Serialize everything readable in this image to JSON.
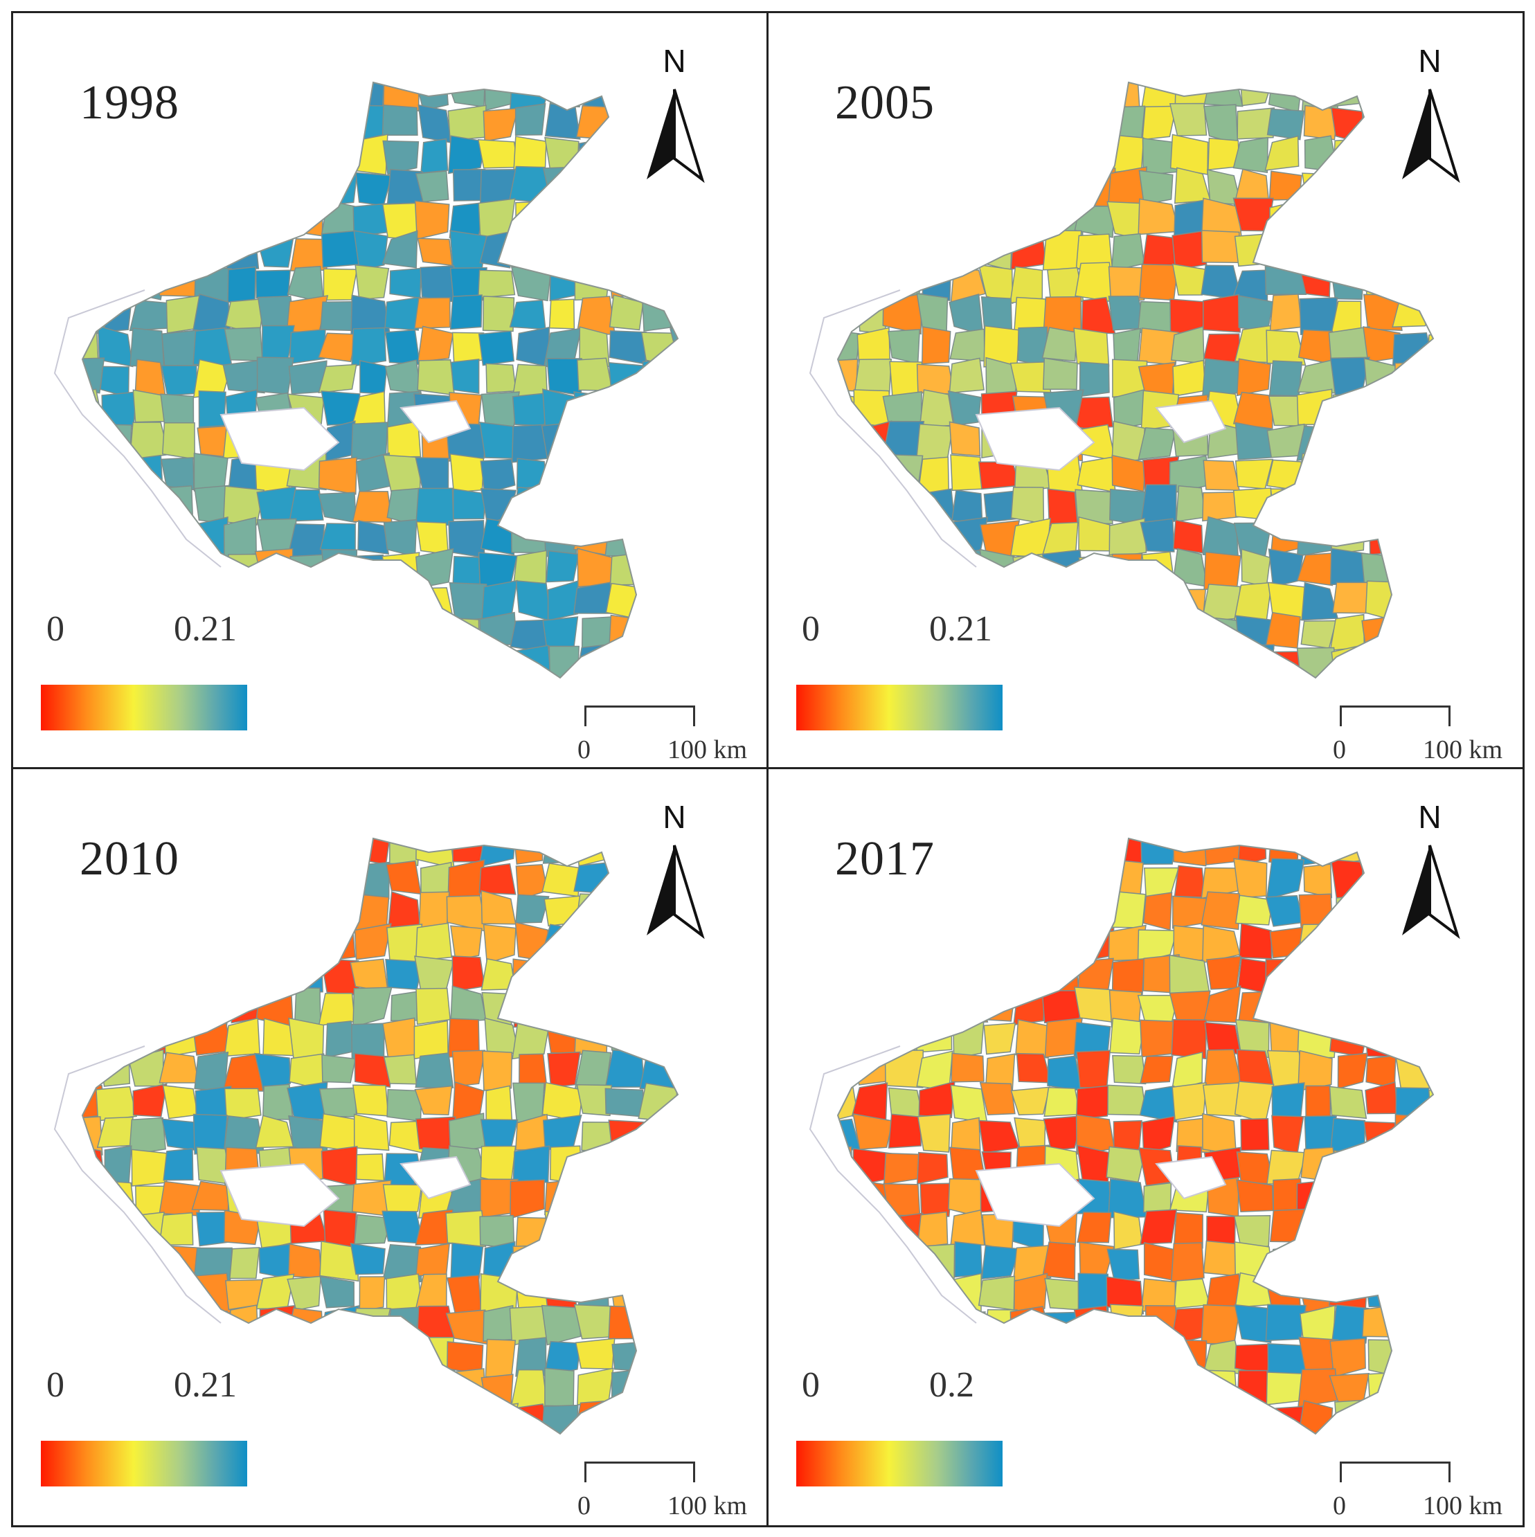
{
  "panels": [
    {
      "year": "1998",
      "legend": {
        "min": "0",
        "max": "0.21"
      },
      "scale": {
        "start": "0",
        "end": "100 km"
      },
      "north": "N",
      "palette": [
        "#1a93c3",
        "#2b9dc4",
        "#3a8fb8",
        "#5da0a8",
        "#79b09e",
        "#2b9dc4",
        "#f5ea3b",
        "#c2d86c",
        "#ff9a2a",
        "#3a8fb8"
      ],
      "seed": 3
    },
    {
      "year": "2005",
      "legend": {
        "min": "0",
        "max": "0.21"
      },
      "scale": {
        "start": "0",
        "end": "100 km"
      },
      "north": "N",
      "palette": [
        "#a8c987",
        "#f5e63a",
        "#ffb43c",
        "#ff8a1f",
        "#8dbb92",
        "#3a8fb8",
        "#e6e24a",
        "#c9d970",
        "#ff3b1c",
        "#5da0a8"
      ],
      "seed": 7
    },
    {
      "year": "2010",
      "legend": {
        "min": "0",
        "max": "0.21"
      },
      "scale": {
        "start": "0",
        "end": "100 km"
      },
      "north": "N",
      "palette": [
        "#ff6a17",
        "#ffb236",
        "#f4e63d",
        "#c5d96f",
        "#8fbc92",
        "#ff3d1a",
        "#ff8c24",
        "#5da0a8",
        "#e6e64d",
        "#2898c9"
      ],
      "seed": 11
    },
    {
      "year": "2017",
      "legend": {
        "min": "0",
        "max": "0.2"
      },
      "scale": {
        "start": "0",
        "end": "100 km"
      },
      "north": "N",
      "palette": [
        "#ff3218",
        "#ff6a17",
        "#ff8c24",
        "#ffb236",
        "#f6d848",
        "#ff4a1a",
        "#e9ee58",
        "#ff7a1f",
        "#c5d96f",
        "#2898c9"
      ],
      "seed": 19
    }
  ]
}
